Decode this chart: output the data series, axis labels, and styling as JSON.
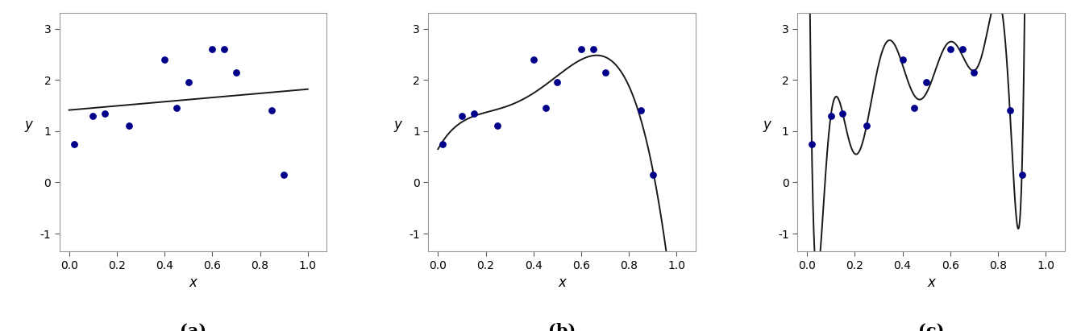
{
  "scatter_x": [
    0.02,
    0.1,
    0.15,
    0.25,
    0.4,
    0.45,
    0.5,
    0.6,
    0.65,
    0.7,
    0.85,
    0.9
  ],
  "scatter_y": [
    0.75,
    1.3,
    1.35,
    1.1,
    2.4,
    1.45,
    1.95,
    2.6,
    2.6,
    2.15,
    1.4,
    0.15
  ],
  "dot_color": "#00008B",
  "line_color": "#1a1a1a",
  "bg_color": "#ffffff",
  "xlim": [
    -0.04,
    1.08
  ],
  "ylim": [
    -1.35,
    3.3
  ],
  "yticks": [
    -1,
    0,
    1,
    2,
    3
  ],
  "xticks": [
    0.0,
    0.2,
    0.4,
    0.6,
    0.8,
    1.0
  ],
  "xlabel": "x",
  "ylabel": "y",
  "degrees": [
    1,
    5,
    10
  ],
  "labels": [
    "(a)",
    "(b)",
    "(c)"
  ],
  "label_fontsize": 15,
  "axis_label_fontsize": 12,
  "tick_fontsize": 10,
  "dot_size": 28,
  "line_width": 1.4
}
